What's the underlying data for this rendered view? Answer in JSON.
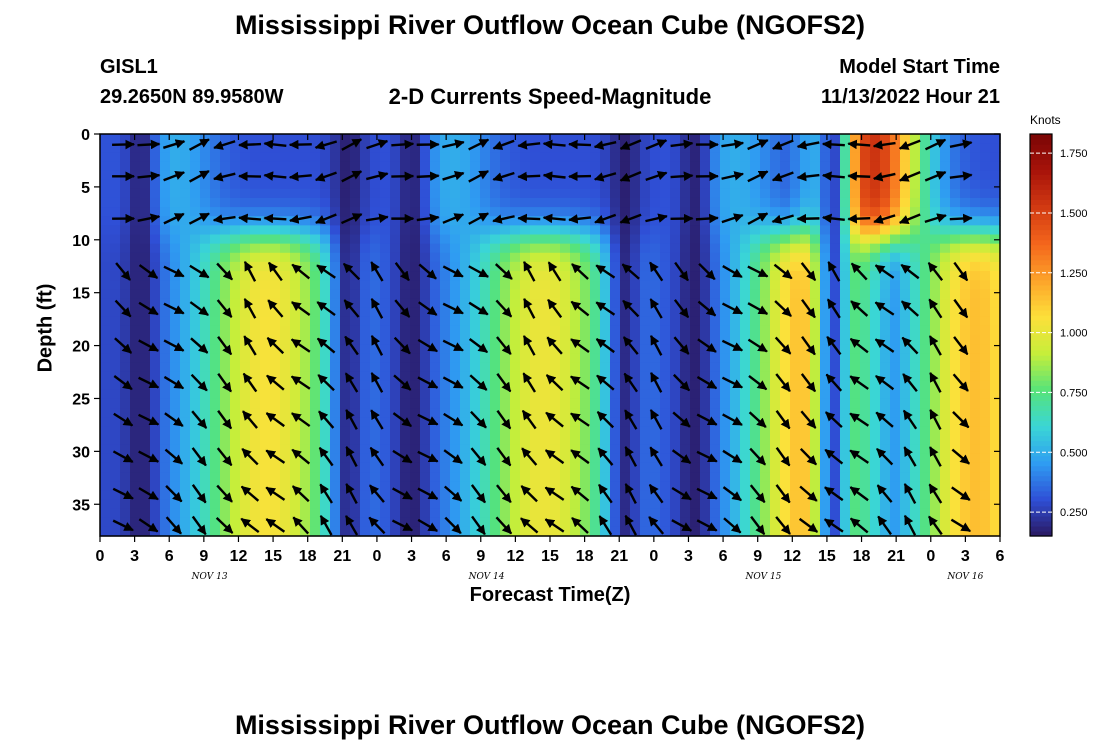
{
  "page": {
    "title": "Mississippi River Outflow Ocean Cube (NGOFS2)",
    "title_repeat": "Mississippi River Outflow Ocean Cube (NGOFS2)"
  },
  "station": {
    "id": "GISL1",
    "coords": "29.2650N  89.9580W",
    "plot_name": "2-D Currents Speed-Magnitude",
    "model_start_label": "Model Start Time",
    "model_start_value": "11/13/2022 Hour 21"
  },
  "chart_data": {
    "type": "heatmap",
    "title": "Mississippi River Outflow Ocean Cube (NGOFS2)",
    "subtitle": "2-D Currents Speed-Magnitude",
    "xlabel": "Forecast Time(Z)",
    "ylabel": "Depth (ft)",
    "xlim_hours": [
      0,
      78
    ],
    "ylim_ft": [
      0,
      38
    ],
    "y_inverted": true,
    "x_tick_labels": [
      "0",
      "3",
      "6",
      "9",
      "12",
      "15",
      "18",
      "21",
      "0",
      "3",
      "6",
      "9",
      "12",
      "15",
      "18",
      "21",
      "0",
      "3",
      "6",
      "9",
      "12",
      "15",
      "18",
      "21",
      "0",
      "3",
      "6"
    ],
    "y_tick_labels": [
      "0",
      "5",
      "10",
      "15",
      "20",
      "25",
      "30",
      "35"
    ],
    "date_labels": [
      {
        "label": "NOV 13",
        "hour": 9.5
      },
      {
        "label": "NOV 14",
        "hour": 33.5
      },
      {
        "label": "NOV 15",
        "hour": 57.5
      },
      {
        "label": "NOV 16",
        "hour": 75
      }
    ],
    "colorbar": {
      "unit": "Knots",
      "range": [
        0.15,
        1.83
      ],
      "tick_labels": [
        "0.250",
        "0.500",
        "0.750",
        "1.000",
        "1.250",
        "1.500",
        "1.750"
      ],
      "tick_values": [
        0.25,
        0.5,
        0.75,
        1.0,
        1.25,
        1.5,
        1.75
      ],
      "colors": [
        "#2a1860",
        "#2f4fd6",
        "#2f9cf2",
        "#3ad6d6",
        "#56e37a",
        "#c6ee3a",
        "#fde03a",
        "#fda42a",
        "#f4661c",
        "#d23a12",
        "#a8130a",
        "#7a0505"
      ]
    },
    "bottom_speed_peaks_knots": [
      {
        "center_hour": 14.5,
        "width_hours": 4.5,
        "peak": 1.05
      },
      {
        "center_hour": 38.5,
        "width_hours": 4.5,
        "peak": 1.02
      },
      {
        "center_hour": 61.5,
        "width_hours": 4.0,
        "peak": 1.18
      },
      {
        "center_hour": 76.0,
        "width_hours": 4.0,
        "peak": 1.15
      }
    ],
    "surface_speed_peaks_knots": [
      {
        "center_hour": 6.5,
        "width_hours": 2.5,
        "peak": 0.5
      },
      {
        "center_hour": 30.5,
        "width_hours": 2.5,
        "peak": 0.5
      },
      {
        "center_hour": 55.0,
        "width_hours": 2.5,
        "peak": 0.5
      },
      {
        "center_hour": 67.0,
        "width_hours": 3.0,
        "peak": 1.55
      }
    ],
    "slack_hours": [
      3.5,
      21.5,
      27.0,
      45.5,
      51.5,
      63.5
    ]
  }
}
